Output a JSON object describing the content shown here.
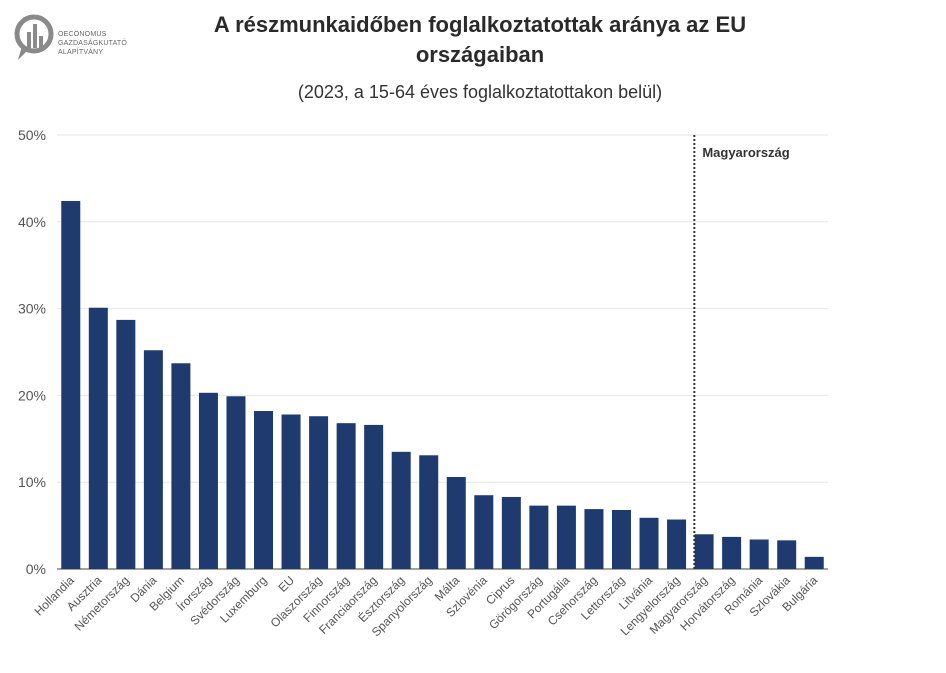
{
  "logo": {
    "lines": [
      "OECONOMUS",
      "GAZDASÁGKUTATÓ",
      "ALAPÍTVÁNY"
    ],
    "color": "#8a8a8a"
  },
  "header": {
    "title_line1": "A részmunkaidőben foglalkoztatottak aránya az EU",
    "title_line2": "országaiban",
    "subtitle": "(2023, a 15-64 éves foglalkoztatottakon belül)"
  },
  "colors": {
    "bar": "#1f3a6e",
    "grid": "#e6e6e6",
    "axis": "#444444"
  },
  "chart_data": {
    "type": "bar",
    "categories": [
      "Hollandia",
      "Ausztria",
      "Németország",
      "Dánia",
      "Belgium",
      "Írország",
      "Svédország",
      "Luxemburg",
      "EU",
      "Olaszország",
      "Finnország",
      "Franciaország",
      "Észtország",
      "Spanyolország",
      "Málta",
      "Szlovénia",
      "Ciprus",
      "Görögország",
      "Portugália",
      "Csehország",
      "Lettország",
      "Litvánia",
      "Lengyelország",
      "Magyarország",
      "Horvátország",
      "Románia",
      "Szlovákia",
      "Bulgária"
    ],
    "values": [
      42.4,
      30.1,
      28.7,
      25.2,
      23.7,
      20.3,
      19.9,
      18.2,
      17.8,
      17.6,
      16.8,
      16.6,
      13.5,
      13.1,
      10.6,
      8.5,
      8.3,
      7.3,
      7.3,
      6.9,
      6.8,
      5.9,
      5.7,
      4.0,
      3.7,
      3.4,
      3.3,
      1.4
    ],
    "ylim": [
      0,
      50
    ],
    "yticks": [
      "0%",
      "10%",
      "20%",
      "30%",
      "40%",
      "50%"
    ],
    "grid": true,
    "reference_line": {
      "category": "Magyarország",
      "label": "Magyarország",
      "style": "dotted"
    }
  }
}
